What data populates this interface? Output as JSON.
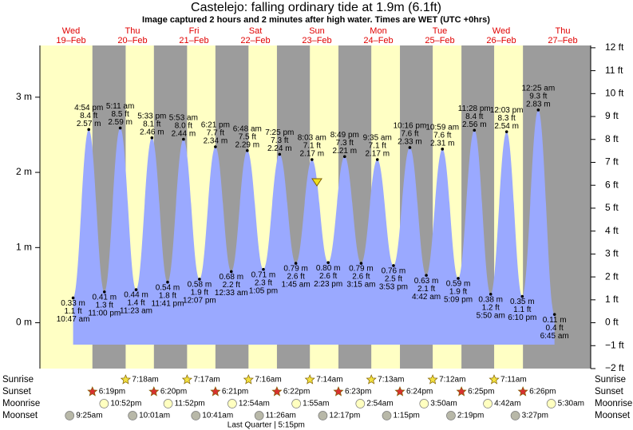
{
  "chart_data": {
    "type": "area",
    "title": "Castelejo: falling  ordinary tide at 1.9m (6.1ft)",
    "subtitle": "Image captured 2 hours and 2 minutes after high water. Times are WET (UTC +0hrs)",
    "color": "#9aa9ff",
    "ylim": [
      -0.6096,
      3.688
    ],
    "yticks": [
      {
        "value": 0,
        "label": "0 m"
      },
      {
        "value": 1,
        "label": "1 m"
      },
      {
        "value": 2,
        "label": "2 m"
      },
      {
        "value": 3,
        "label": "3 m"
      }
    ],
    "y2lim": [
      -2,
      12.1
    ],
    "y2ticks": [
      {
        "value": -2,
        "label": "−2 ft"
      },
      {
        "value": -1,
        "label": "−1 ft"
      },
      {
        "value": 0,
        "label": "0 ft"
      },
      {
        "value": 1,
        "label": "1 ft"
      },
      {
        "value": 2,
        "label": "2 ft"
      },
      {
        "value": 3,
        "label": "3 ft"
      },
      {
        "value": 4,
        "label": "4 ft"
      },
      {
        "value": 5,
        "label": "5 ft"
      },
      {
        "value": 6,
        "label": "6 ft"
      },
      {
        "value": 7,
        "label": "7 ft"
      },
      {
        "value": 8,
        "label": "8 ft"
      },
      {
        "value": 9,
        "label": "9 ft"
      },
      {
        "value": 10,
        "label": "10 ft"
      },
      {
        "value": 11,
        "label": "11 ft"
      },
      {
        "value": 12,
        "label": "12 ft"
      }
    ],
    "event_rows": [
      "Sunrise",
      "Sunset",
      "Moonrise",
      "Moonset"
    ],
    "days": [
      {
        "weekday": "Wed",
        "date": "19–Feb",
        "sunrise": null,
        "sunset": "6:19pm",
        "moonrise": "10:52pm",
        "moonset": "9:25am",
        "tides": {
          "x": [
            "10:47 am",
            "4:54 pm",
            "11:00 pm"
          ],
          "values": [
            0.33,
            2.57,
            0.41
          ],
          "value_labels": [
            "0.33 m",
            "2.57 m",
            "0.41 m"
          ],
          "ft_labels": [
            "1.1 ft",
            "8.4 ft",
            "1.3 ft"
          ]
        }
      },
      {
        "weekday": "Thu",
        "date": "20–Feb",
        "sunrise": "7:18am",
        "sunset": "6:20pm",
        "moonrise": "11:52pm",
        "moonset": "10:01am",
        "tides": {
          "x": [
            "5:11 am",
            "11:23 am",
            "5:33 pm",
            "11:41 pm"
          ],
          "values": [
            2.59,
            0.44,
            2.46,
            0.54
          ],
          "value_labels": [
            "2.59 m",
            "0.44 m",
            "2.46 m",
            "0.54 m"
          ],
          "ft_labels": [
            "8.5 ft",
            "1.4 ft",
            "8.1 ft",
            "1.8 ft"
          ]
        }
      },
      {
        "weekday": "Fri",
        "date": "21–Feb",
        "sunrise": "7:17am",
        "sunset": "6:21pm",
        "moonrise": null,
        "moonset": "10:41am",
        "tides": {
          "x": [
            "5:53 am",
            "12:07 pm",
            "6:21 pm"
          ],
          "values": [
            2.44,
            0.58,
            2.34
          ],
          "value_labels": [
            "2.44 m",
            "0.58 m",
            "2.34 m"
          ],
          "ft_labels": [
            "8.0 ft",
            "1.9 ft",
            "7.7 ft"
          ]
        }
      },
      {
        "weekday": "Sat",
        "date": "22–Feb",
        "sunrise": "7:16am",
        "sunset": "6:22pm",
        "moonrise": "12:54am",
        "moonset": "11:26am",
        "moon_phase": "Last Quarter | 5:15pm",
        "tides": {
          "x": [
            "12:33 am",
            "6:48 am",
            "1:05 pm",
            "7:25 pm"
          ],
          "values": [
            0.68,
            2.29,
            0.71,
            2.24
          ],
          "value_labels": [
            "0.68 m",
            "2.29 m",
            "0.71 m",
            "2.24 m"
          ],
          "ft_labels": [
            "2.2 ft",
            "7.5 ft",
            "2.3 ft",
            "7.3 ft"
          ]
        }
      },
      {
        "weekday": "Sun",
        "date": "23–Feb",
        "sunrise": "7:14am",
        "sunset": "6:23pm",
        "moonrise": "1:55am",
        "moonset": "12:17pm",
        "tides": {
          "x": [
            "1:45 am",
            "8:03 am",
            "2:23 pm",
            "8:49 pm"
          ],
          "values": [
            0.79,
            2.17,
            0.8,
            2.21
          ],
          "value_labels": [
            "0.79 m",
            "2.17 m",
            "0.80 m",
            "2.21 m"
          ],
          "ft_labels": [
            "2.6 ft",
            "7.1 ft",
            "2.6 ft",
            "7.3 ft"
          ]
        }
      },
      {
        "weekday": "Mon",
        "date": "24–Feb",
        "sunrise": "7:13am",
        "sunset": "6:24pm",
        "moonrise": "2:54am",
        "moonset": "1:15pm",
        "tides": {
          "x": [
            "3:15 am",
            "9:35 am",
            "3:53 pm",
            "10:16 pm"
          ],
          "values": [
            0.79,
            2.17,
            0.76,
            2.33
          ],
          "value_labels": [
            "0.79 m",
            "2.17 m",
            "0.76 m",
            "2.33 m"
          ],
          "ft_labels": [
            "2.6 ft",
            "7.1 ft",
            "2.5 ft",
            "7.6 ft"
          ]
        }
      },
      {
        "weekday": "Tue",
        "date": "25–Feb",
        "sunrise": "7:12am",
        "sunset": "6:25pm",
        "moonrise": "3:50am",
        "moonset": "2:19pm",
        "tides": {
          "x": [
            "4:42 am",
            "10:59 am",
            "5:09 pm",
            "11:28 pm"
          ],
          "values": [
            0.63,
            2.31,
            0.59,
            2.56
          ],
          "value_labels": [
            "0.63 m",
            "2.31 m",
            "0.59 m",
            "2.56 m"
          ],
          "ft_labels": [
            "2.1 ft",
            "7.6 ft",
            "1.9 ft",
            "8.4 ft"
          ]
        }
      },
      {
        "weekday": "Wed",
        "date": "26–Feb",
        "sunrise": "7:11am",
        "sunset": "6:26pm",
        "moonrise": "4:42am",
        "moonset": "3:27pm",
        "tides": {
          "x": [
            "5:50 am",
            "12:03 pm",
            "6:10 pm"
          ],
          "values": [
            0.38,
            2.54,
            0.35
          ],
          "value_labels": [
            "0.38 m",
            "2.54 m",
            "0.35 m"
          ],
          "ft_labels": [
            "1.2 ft",
            "8.3 ft",
            "1.1 ft"
          ]
        }
      },
      {
        "weekday": "Thu",
        "date": "27–Feb",
        "sunrise": null,
        "sunset": null,
        "moonrise": "5:30am",
        "moonset": null,
        "tides": {
          "x": [
            "12:25 am",
            "6:45 am"
          ],
          "values": [
            2.83,
            0.11
          ],
          "value_labels": [
            "2.83 m",
            "0.11 m"
          ],
          "ft_labels": [
            "9.3 ft",
            "0.4 ft"
          ]
        }
      }
    ]
  }
}
